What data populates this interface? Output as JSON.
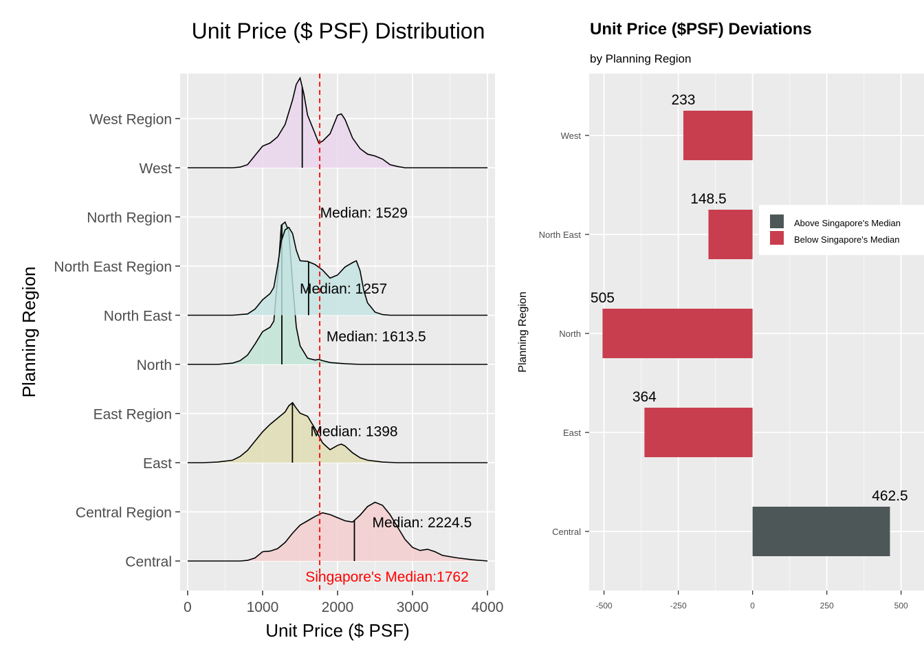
{
  "chart_data": [
    {
      "type": "ridgeline",
      "title": "Unit Price ($ PSF) Distribution",
      "xlabel": "Unit Price ($ PSF)",
      "ylabel": "Planning Region",
      "xlim": [
        -100,
        4100
      ],
      "x_ticks": [
        0,
        1000,
        2000,
        3000,
        4000
      ],
      "y_tick_labels": [
        "Central",
        "Central Region",
        "East",
        "East Region",
        "North",
        "North East",
        "North East Region",
        "North Region",
        "West",
        "West Region"
      ],
      "grid": "on",
      "reference_line": {
        "value": 1762,
        "label": "Singapore's Median:1762",
        "color": "#ff0000",
        "style": "dashed"
      },
      "series": [
        {
          "name": "Central",
          "fill": "#f4cccc",
          "median": 2224.5,
          "median_label": "Median: 2224.5",
          "density": [
            [
              0,
              0
            ],
            [
              700,
              0
            ],
            [
              800,
              0.01
            ],
            [
              900,
              0.05
            ],
            [
              1000,
              0.15
            ],
            [
              1100,
              0.16
            ],
            [
              1200,
              0.2
            ],
            [
              1300,
              0.3
            ],
            [
              1400,
              0.45
            ],
            [
              1500,
              0.58
            ],
            [
              1600,
              0.65
            ],
            [
              1700,
              0.72
            ],
            [
              1800,
              0.78
            ],
            [
              1900,
              0.75
            ],
            [
              2000,
              0.7
            ],
            [
              2100,
              0.65
            ],
            [
              2200,
              0.63
            ],
            [
              2300,
              0.74
            ],
            [
              2400,
              0.88
            ],
            [
              2500,
              0.95
            ],
            [
              2600,
              0.9
            ],
            [
              2700,
              0.75
            ],
            [
              2800,
              0.55
            ],
            [
              2900,
              0.35
            ],
            [
              3000,
              0.22
            ],
            [
              3100,
              0.17
            ],
            [
              3200,
              0.19
            ],
            [
              3300,
              0.15
            ],
            [
              3400,
              0.09
            ],
            [
              3600,
              0.05
            ],
            [
              3800,
              0.02
            ],
            [
              4000,
              0
            ]
          ]
        },
        {
          "name": "East",
          "fill": "#e0dcb0",
          "median": 1398,
          "median_label": "Median: 1398",
          "density": [
            [
              0,
              0
            ],
            [
              200,
              0
            ],
            [
              400,
              0.01
            ],
            [
              600,
              0.04
            ],
            [
              700,
              0.1
            ],
            [
              800,
              0.2
            ],
            [
              900,
              0.35
            ],
            [
              1000,
              0.5
            ],
            [
              1100,
              0.62
            ],
            [
              1200,
              0.72
            ],
            [
              1300,
              0.82
            ],
            [
              1350,
              0.92
            ],
            [
              1400,
              0.97
            ],
            [
              1450,
              0.88
            ],
            [
              1500,
              0.8
            ],
            [
              1600,
              0.75
            ],
            [
              1700,
              0.55
            ],
            [
              1800,
              0.32
            ],
            [
              1900,
              0.21
            ],
            [
              2000,
              0.28
            ],
            [
              2050,
              0.3
            ],
            [
              2100,
              0.27
            ],
            [
              2200,
              0.16
            ],
            [
              2300,
              0.08
            ],
            [
              2400,
              0.04
            ],
            [
              2600,
              0.01
            ],
            [
              2800,
              0
            ],
            [
              4000,
              0
            ]
          ]
        },
        {
          "name": "North",
          "fill": "#bfe3d4",
          "median": 1257,
          "median_label": "Median: 1257",
          "density": [
            [
              0,
              0
            ],
            [
              400,
              0
            ],
            [
              600,
              0.02
            ],
            [
              700,
              0.06
            ],
            [
              800,
              0.15
            ],
            [
              900,
              0.33
            ],
            [
              1000,
              0.53
            ],
            [
              1100,
              0.6
            ],
            [
              1150,
              0.7
            ],
            [
              1200,
              1.4
            ],
            [
              1250,
              2.25
            ],
            [
              1300,
              2.3
            ],
            [
              1350,
              2.15
            ],
            [
              1400,
              1.3
            ],
            [
              1450,
              0.6
            ],
            [
              1500,
              0.3
            ],
            [
              1600,
              0.1
            ],
            [
              1700,
              0.07
            ],
            [
              1750,
              0.08
            ],
            [
              1800,
              0.06
            ],
            [
              1900,
              0.03
            ],
            [
              2100,
              0.01
            ],
            [
              2300,
              0
            ],
            [
              4000,
              0
            ]
          ]
        },
        {
          "name": "North East",
          "fill": "#c2e4e2",
          "median": 1613.5,
          "median_label": "Median: 1613.5",
          "density": [
            [
              0,
              0
            ],
            [
              600,
              0
            ],
            [
              800,
              0.02
            ],
            [
              900,
              0.1
            ],
            [
              1000,
              0.25
            ],
            [
              1100,
              0.35
            ],
            [
              1150,
              0.45
            ],
            [
              1200,
              0.8
            ],
            [
              1250,
              1.2
            ],
            [
              1300,
              1.38
            ],
            [
              1350,
              1.42
            ],
            [
              1400,
              1.32
            ],
            [
              1450,
              1.05
            ],
            [
              1500,
              0.88
            ],
            [
              1600,
              0.87
            ],
            [
              1700,
              0.82
            ],
            [
              1800,
              0.73
            ],
            [
              1900,
              0.6
            ],
            [
              2000,
              0.65
            ],
            [
              2100,
              0.78
            ],
            [
              2200,
              0.85
            ],
            [
              2250,
              0.88
            ],
            [
              2300,
              0.72
            ],
            [
              2350,
              0.4
            ],
            [
              2400,
              0.2
            ],
            [
              2500,
              0.05
            ],
            [
              2600,
              0.01
            ],
            [
              2700,
              0
            ],
            [
              4000,
              0
            ]
          ]
        },
        {
          "name": "West",
          "fill": "#ead3ee",
          "median": 1529,
          "median_label": "Median: 1529",
          "density": [
            [
              0,
              0
            ],
            [
              600,
              0
            ],
            [
              700,
              0.01
            ],
            [
              800,
              0.05
            ],
            [
              900,
              0.2
            ],
            [
              1000,
              0.35
            ],
            [
              1100,
              0.4
            ],
            [
              1200,
              0.5
            ],
            [
              1300,
              0.7
            ],
            [
              1400,
              1.1
            ],
            [
              1450,
              1.35
            ],
            [
              1500,
              1.45
            ],
            [
              1550,
              1.2
            ],
            [
              1600,
              0.85
            ],
            [
              1700,
              0.55
            ],
            [
              1750,
              0.4
            ],
            [
              1800,
              0.43
            ],
            [
              1900,
              0.55
            ],
            [
              2000,
              0.85
            ],
            [
              2050,
              0.87
            ],
            [
              2100,
              0.78
            ],
            [
              2200,
              0.48
            ],
            [
              2300,
              0.31
            ],
            [
              2400,
              0.22
            ],
            [
              2500,
              0.19
            ],
            [
              2600,
              0.14
            ],
            [
              2700,
              0.05
            ],
            [
              2800,
              0.02
            ],
            [
              2900,
              0
            ],
            [
              4000,
              0
            ]
          ]
        }
      ]
    },
    {
      "type": "bar",
      "orientation": "horizontal",
      "title": "Unit Price ($PSF) Deviations",
      "subtitle": "by Planning Region",
      "ylabel": "Planning Region",
      "xlabel": "",
      "xlim": [
        -550,
        510
      ],
      "x_ticks": [
        -500,
        -250,
        0,
        250,
        500
      ],
      "categories": [
        "West",
        "North East",
        "North",
        "East",
        "Central"
      ],
      "values": [
        -233,
        -148.5,
        -505,
        -364,
        462.5
      ],
      "labels": [
        "233",
        "148.5",
        "505",
        "364",
        "462.5"
      ],
      "groups": [
        "Below Singapore's Median",
        "Below Singapore's Median",
        "Below Singapore's Median",
        "Below Singapore's Median",
        "Above Singapore's Median"
      ],
      "legend": {
        "placement": "right",
        "entries": [
          {
            "name": "Above Singapore's Median",
            "color": "#4d5757"
          },
          {
            "name": "Below Singapore's Median",
            "color": "#c93e4f"
          }
        ]
      },
      "grid": "on"
    }
  ]
}
